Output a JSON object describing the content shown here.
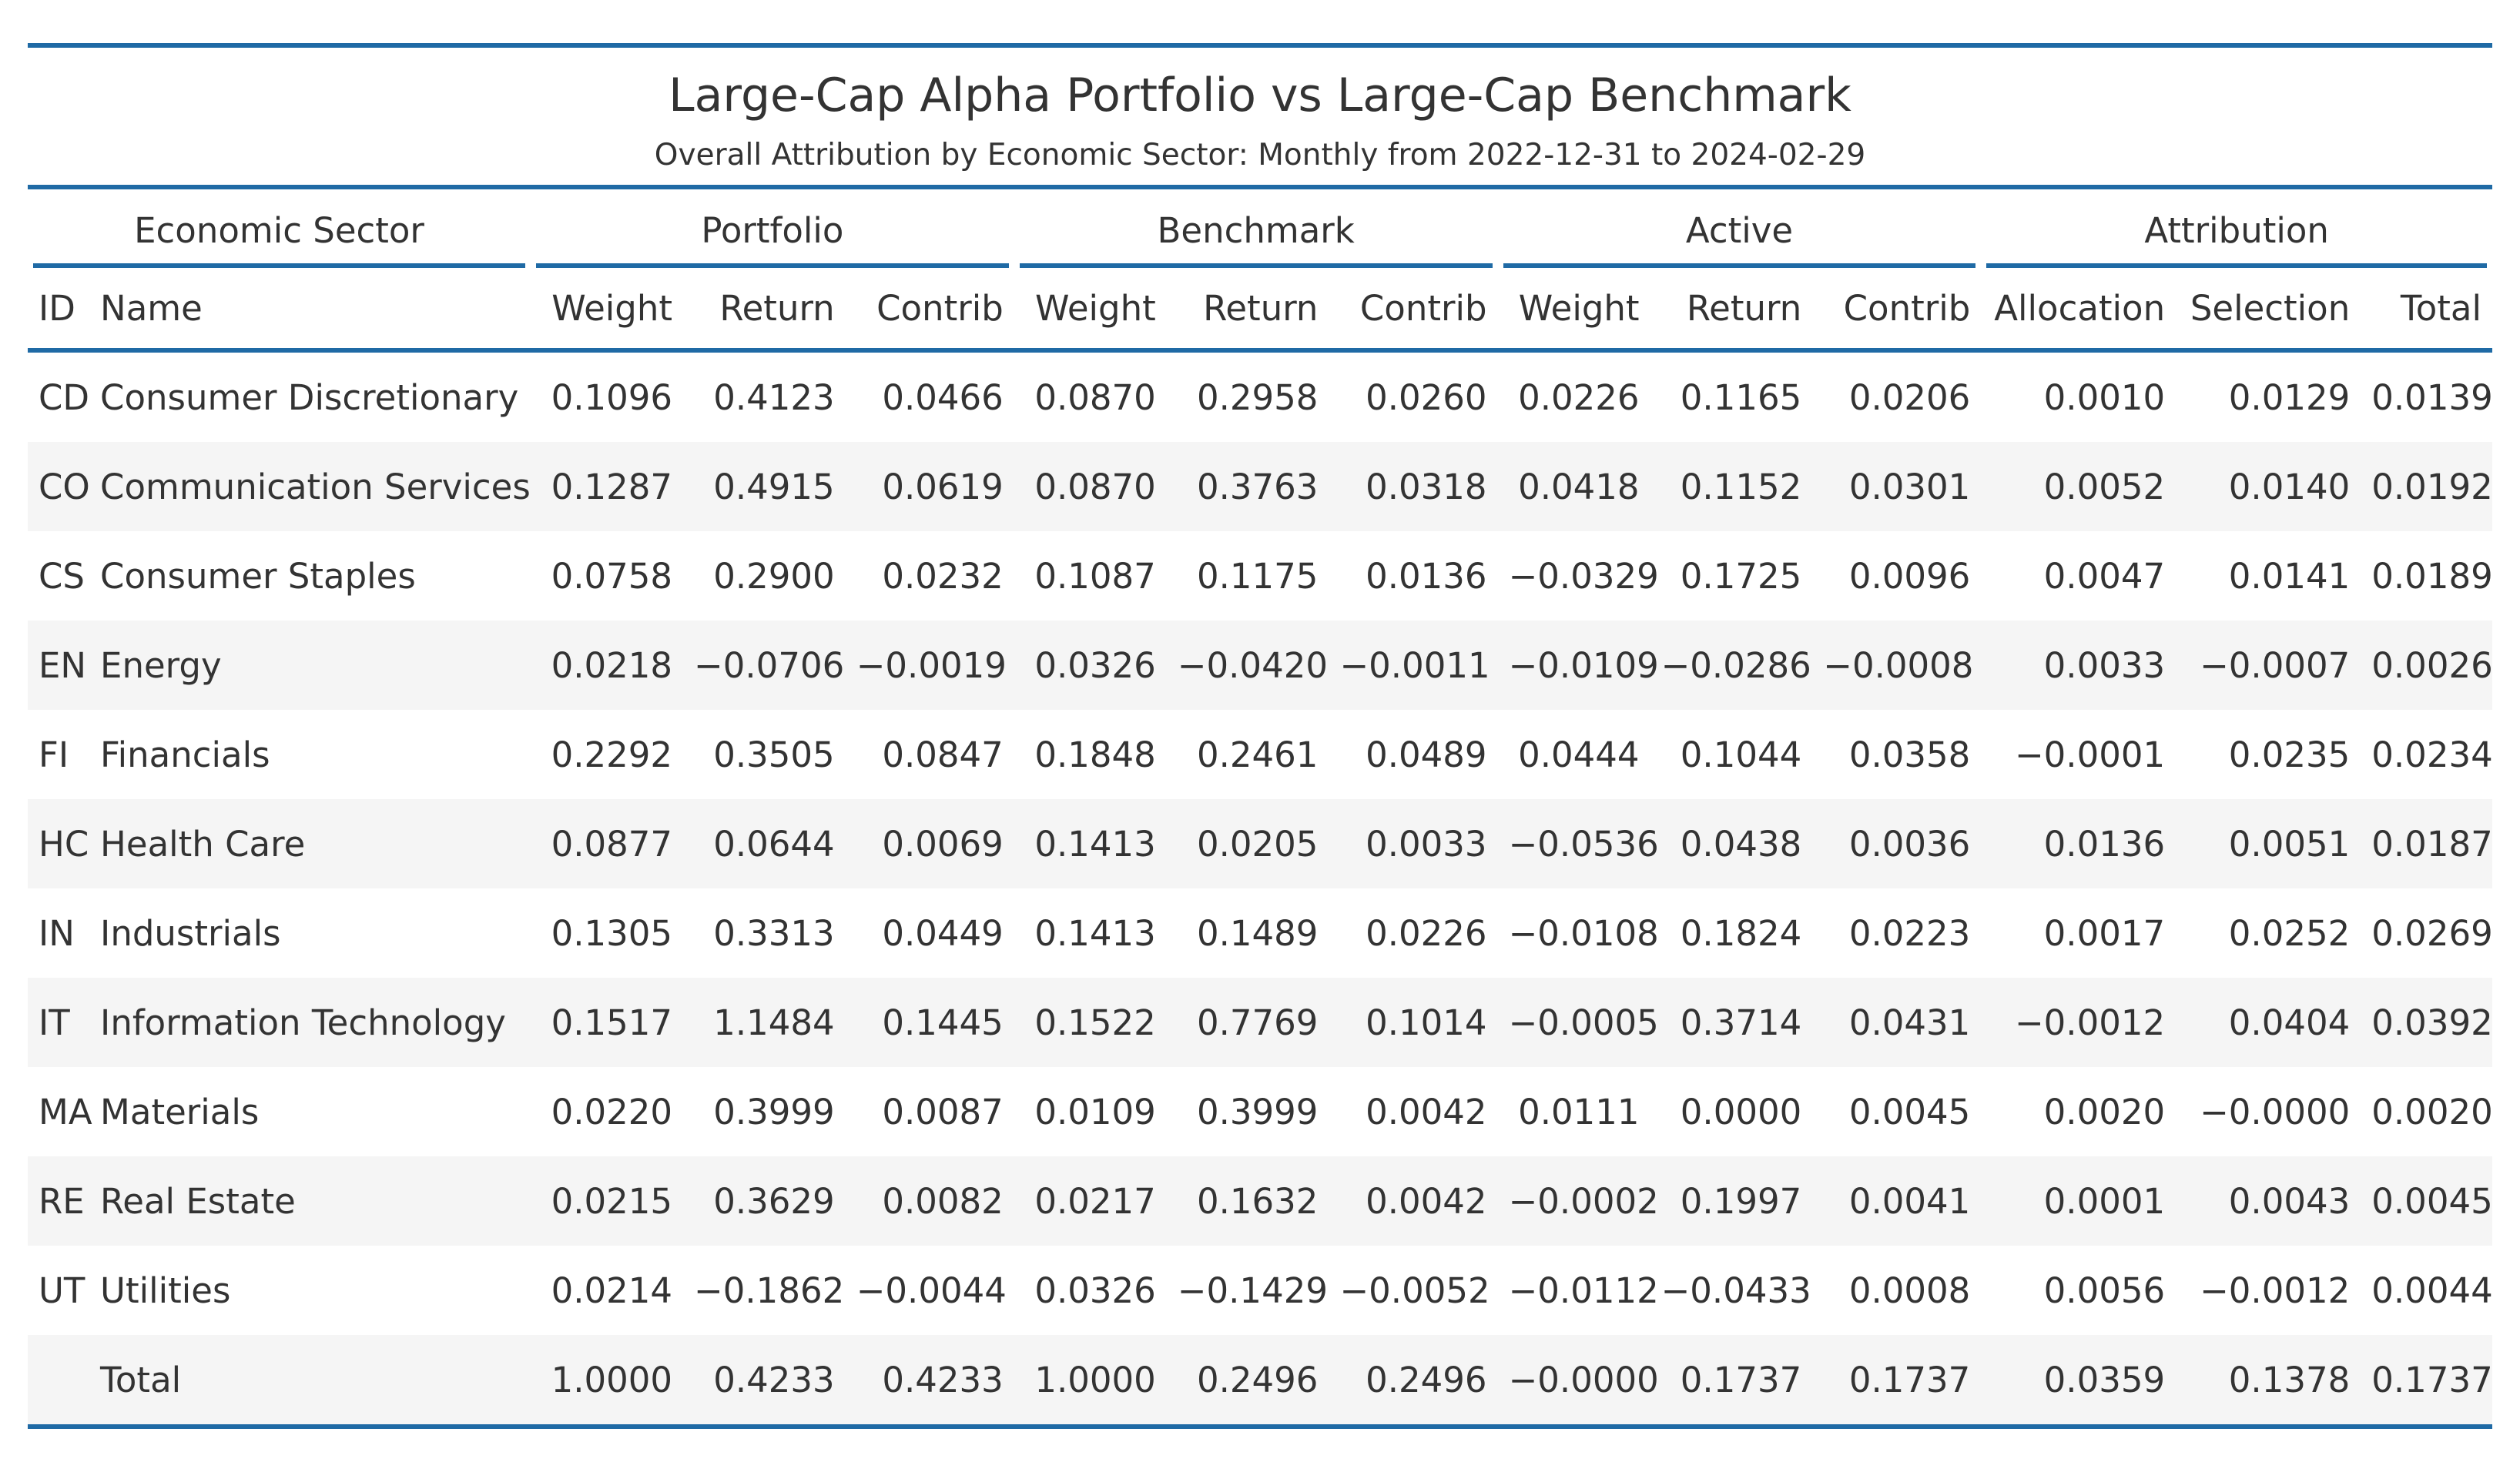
{
  "title": "Large-Cap Alpha Portfolio vs Large-Cap Benchmark",
  "subtitle": "Overall Attribution by Economic Sector: Monthly from 2022-12-31 to 2024-02-29",
  "spanners": [
    {
      "label": "Economic Sector",
      "span": 2
    },
    {
      "label": "Portfolio",
      "span": 3
    },
    {
      "label": "Benchmark",
      "span": 3
    },
    {
      "label": "Active",
      "span": 3
    },
    {
      "label": "Attribution",
      "span": 3
    }
  ],
  "columns": [
    "ID",
    "Name",
    "Weight",
    "Return",
    "Contrib",
    "Weight",
    "Return",
    "Contrib",
    "Weight",
    "Return",
    "Contrib",
    "Allocation",
    "Selection",
    "Total"
  ],
  "rows": [
    [
      "CD",
      "Consumer Discretionary",
      "0.1096",
      "0.4123",
      "0.0466",
      "0.0870",
      "0.2958",
      "0.0260",
      "0.0226",
      "0.1165",
      "0.0206",
      "0.0010",
      "0.0129",
      "0.0139"
    ],
    [
      "CO",
      "Communication Services",
      "0.1287",
      "0.4915",
      "0.0619",
      "0.0870",
      "0.3763",
      "0.0318",
      "0.0418",
      "0.1152",
      "0.0301",
      "0.0052",
      "0.0140",
      "0.0192"
    ],
    [
      "CS",
      "Consumer Staples",
      "0.0758",
      "0.2900",
      "0.0232",
      "0.1087",
      "0.1175",
      "0.0136",
      "−0.0329",
      "0.1725",
      "0.0096",
      "0.0047",
      "0.0141",
      "0.0189"
    ],
    [
      "EN",
      "Energy",
      "0.0218",
      "−0.0706",
      "−0.0019",
      "0.0326",
      "−0.0420",
      "−0.0011",
      "−0.0109",
      "−0.0286",
      "−0.0008",
      "0.0033",
      "−0.0007",
      "0.0026"
    ],
    [
      "FI",
      "Financials",
      "0.2292",
      "0.3505",
      "0.0847",
      "0.1848",
      "0.2461",
      "0.0489",
      "0.0444",
      "0.1044",
      "0.0358",
      "−0.0001",
      "0.0235",
      "0.0234"
    ],
    [
      "HC",
      "Health Care",
      "0.0877",
      "0.0644",
      "0.0069",
      "0.1413",
      "0.0205",
      "0.0033",
      "−0.0536",
      "0.0438",
      "0.0036",
      "0.0136",
      "0.0051",
      "0.0187"
    ],
    [
      "IN",
      "Industrials",
      "0.1305",
      "0.3313",
      "0.0449",
      "0.1413",
      "0.1489",
      "0.0226",
      "−0.0108",
      "0.1824",
      "0.0223",
      "0.0017",
      "0.0252",
      "0.0269"
    ],
    [
      "IT",
      "Information Technology",
      "0.1517",
      "1.1484",
      "0.1445",
      "0.1522",
      "0.7769",
      "0.1014",
      "−0.0005",
      "0.3714",
      "0.0431",
      "−0.0012",
      "0.0404",
      "0.0392"
    ],
    [
      "MA",
      "Materials",
      "0.0220",
      "0.3999",
      "0.0087",
      "0.0109",
      "0.3999",
      "0.0042",
      "0.0111",
      "0.0000",
      "0.0045",
      "0.0020",
      "−0.0000",
      "0.0020"
    ],
    [
      "RE",
      "Real Estate",
      "0.0215",
      "0.3629",
      "0.0082",
      "0.0217",
      "0.1632",
      "0.0042",
      "−0.0002",
      "0.1997",
      "0.0041",
      "0.0001",
      "0.0043",
      "0.0045"
    ],
    [
      "UT",
      "Utilities",
      "0.0214",
      "−0.1862",
      "−0.0044",
      "0.0326",
      "−0.1429",
      "−0.0052",
      "−0.0112",
      "−0.0433",
      "0.0008",
      "0.0056",
      "−0.0012",
      "0.0044"
    ],
    [
      "",
      "Total",
      "1.0000",
      "0.4233",
      "0.4233",
      "1.0000",
      "0.2496",
      "0.2496",
      "−0.0000",
      "0.1737",
      "0.1737",
      "0.0359",
      "0.1378",
      "0.1737"
    ]
  ]
}
